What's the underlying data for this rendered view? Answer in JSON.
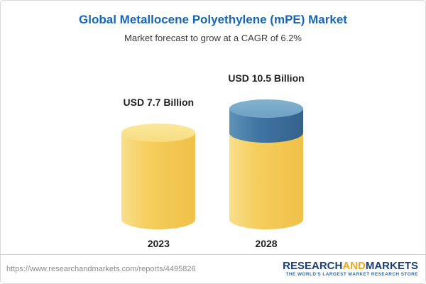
{
  "header": {
    "title": "Global Metallocene Polyethylene (mPE) Market",
    "subtitle": "Market forecast to grow at a CAGR of 6.2%"
  },
  "chart_data": {
    "type": "bar",
    "subtype": "3d-cylinder",
    "title": "Global Metallocene Polyethylene (mPE) Market",
    "subtitle": "Market forecast to grow at a CAGR of 6.2%",
    "categories": [
      "2023",
      "2028"
    ],
    "values": [
      7.7,
      10.5
    ],
    "value_labels": [
      "USD 7.7 Billion",
      "USD 10.5 Billion"
    ],
    "unit": "USD Billion",
    "cagr_percent": 6.2,
    "legend": "none",
    "grid": false,
    "bar_colors": {
      "base_value": "#F5CE5E",
      "growth_segment": "#3F74A2"
    }
  },
  "footer": {
    "url": "https://www.researchandmarkets.com/reports/4495826",
    "logo": {
      "word1": "RESEARCH",
      "word2": "AND",
      "word3": "MARKETS",
      "tagline": "THE WORLD'S LARGEST MARKET RESEARCH STORE"
    }
  },
  "colors": {
    "title_blue": "#1666B3",
    "logo_navy": "#1B3F76",
    "logo_gold": "#F2A71B",
    "tagline_blue": "#2B6CB0"
  }
}
